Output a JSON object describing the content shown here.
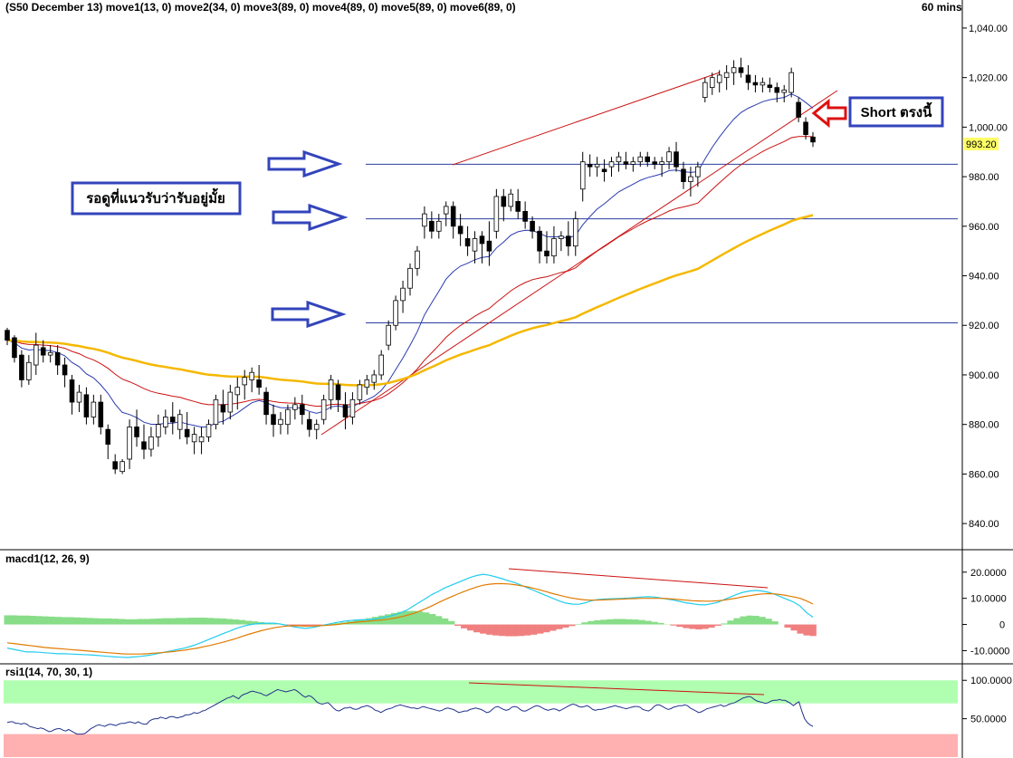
{
  "header": {
    "title": "(S50 December 13) move1(13, 0) move2(34, 0) move3(89, 0) move4(89, 0) move5(89, 0) move6(89, 0)",
    "interval": "60 mins"
  },
  "annotations": {
    "support_note": "รอดูที่แนวรับว่ารับอยู่มั้ย",
    "short_note": "Short ตรงนี้"
  },
  "colors": {
    "candle_body_up": "#ffffff",
    "candle_body_down": "#000000",
    "ma_fast": "#2a3bb0",
    "ma_mid": "#cc1111",
    "ma_slow": "#f5b800",
    "support_line": "#2b3fa0",
    "trendline": "#cc1111",
    "arrow_blue": "#3344bb",
    "arrow_red": "#dd1111",
    "macd_line": "#22ccee",
    "signal_line": "#e07b00",
    "hist_pos": "#88dd88",
    "hist_neg": "#f08080",
    "rsi_line": "#22338a",
    "rsi_overbought_zone": "#b0ffb0",
    "rsi_oversold_zone": "#ffb0b0"
  },
  "chart_data": [
    {
      "type": "candlestick",
      "panel": "price",
      "interval": "60 mins",
      "y_ticks": [
        "1,040.00",
        "1,020.00",
        "1,000.00",
        "980.00",
        "960.00",
        "940.00",
        "920.00",
        "900.00",
        "880.00",
        "860.00",
        "840.00"
      ],
      "ylim": [
        832,
        1044
      ],
      "last_price": "993.20",
      "support_levels": [
        985,
        963,
        921
      ],
      "ma_periods": [
        13,
        34,
        89
      ],
      "ohlc": [
        [
          918,
          919,
          912,
          914
        ],
        [
          915,
          916,
          905,
          907
        ],
        [
          908,
          910,
          895,
          898
        ],
        [
          898,
          908,
          896,
          905
        ],
        [
          904,
          917,
          900,
          912
        ],
        [
          911,
          914,
          905,
          908
        ],
        [
          908,
          912,
          905,
          909
        ],
        [
          909,
          912,
          900,
          904
        ],
        [
          904,
          907,
          895,
          900
        ],
        [
          898,
          900,
          884,
          889
        ],
        [
          889,
          896,
          885,
          893
        ],
        [
          892,
          895,
          880,
          883
        ],
        [
          883,
          892,
          880,
          889
        ],
        [
          889,
          892,
          876,
          879
        ],
        [
          878,
          880,
          866,
          872
        ],
        [
          865,
          868,
          860,
          862
        ],
        [
          861,
          866,
          860,
          865
        ],
        [
          866,
          882,
          862,
          879
        ],
        [
          879,
          886,
          871,
          875
        ],
        [
          873,
          880,
          866,
          870
        ],
        [
          870,
          879,
          867,
          875
        ],
        [
          875,
          884,
          871,
          880
        ],
        [
          879,
          886,
          876,
          883
        ],
        [
          883,
          889,
          876,
          881
        ],
        [
          878,
          886,
          874,
          884
        ],
        [
          878,
          885,
          872,
          875
        ],
        [
          873,
          879,
          868,
          876
        ],
        [
          873,
          879,
          868,
          875
        ],
        [
          875,
          882,
          873,
          880
        ],
        [
          880,
          892,
          878,
          890
        ],
        [
          888,
          894,
          880,
          885
        ],
        [
          885,
          896,
          882,
          893
        ],
        [
          892,
          899,
          886,
          895
        ],
        [
          896,
          902,
          890,
          899
        ],
        [
          898,
          903,
          893,
          901
        ],
        [
          898,
          904,
          892,
          895
        ],
        [
          893,
          895,
          880,
          884
        ],
        [
          884,
          888,
          875,
          880
        ],
        [
          880,
          885,
          876,
          882
        ],
        [
          880,
          888,
          876,
          886
        ],
        [
          886,
          891,
          882,
          888
        ],
        [
          888,
          892,
          880,
          884
        ],
        [
          882,
          885,
          875,
          878
        ],
        [
          878,
          882,
          874,
          880
        ],
        [
          882,
          892,
          880,
          890
        ],
        [
          890,
          900,
          886,
          898
        ],
        [
          896,
          898,
          885,
          890
        ],
        [
          888,
          893,
          878,
          883
        ],
        [
          883,
          893,
          880,
          890
        ],
        [
          890,
          898,
          888,
          896
        ],
        [
          895,
          900,
          892,
          898
        ],
        [
          897,
          902,
          894,
          900
        ],
        [
          900,
          910,
          898,
          908
        ],
        [
          912,
          922,
          910,
          920
        ],
        [
          920,
          932,
          918,
          930
        ],
        [
          930,
          938,
          925,
          935
        ],
        [
          935,
          945,
          932,
          943
        ],
        [
          943,
          952,
          940,
          950
        ],
        [
          960,
          968,
          955,
          965
        ],
        [
          962,
          966,
          955,
          958
        ],
        [
          958,
          965,
          955,
          962
        ],
        [
          965,
          970,
          960,
          968
        ],
        [
          968,
          970,
          955,
          960
        ],
        [
          960,
          965,
          952,
          957
        ],
        [
          955,
          960,
          948,
          952
        ],
        [
          950,
          958,
          945,
          955
        ],
        [
          956,
          958,
          945,
          953
        ],
        [
          954,
          962,
          944,
          950
        ],
        [
          958,
          975,
          955,
          972
        ],
        [
          972,
          975,
          962,
          968
        ],
        [
          968,
          975,
          966,
          973
        ],
        [
          970,
          975,
          963,
          966
        ],
        [
          966,
          970,
          959,
          962
        ],
        [
          962,
          964,
          955,
          958
        ],
        [
          958,
          960,
          945,
          950
        ],
        [
          950,
          958,
          945,
          948
        ],
        [
          948,
          960,
          945,
          955
        ],
        [
          955,
          958,
          950,
          956
        ],
        [
          956,
          962,
          948,
          952
        ],
        [
          952,
          966,
          948,
          963
        ],
        [
          975,
          990,
          970,
          986
        ],
        [
          985,
          989,
          980,
          984
        ],
        [
          984,
          988,
          980,
          985
        ],
        [
          983,
          987,
          978,
          982
        ],
        [
          984,
          988,
          980,
          986
        ],
        [
          986,
          990,
          982,
          988
        ],
        [
          986,
          990,
          983,
          985
        ],
        [
          985,
          988,
          982,
          986
        ],
        [
          986,
          990,
          984,
          988
        ],
        [
          988,
          990,
          984,
          986
        ],
        [
          986,
          988,
          983,
          985
        ],
        [
          985,
          988,
          980,
          986
        ],
        [
          986,
          992,
          983,
          990
        ],
        [
          990,
          994,
          982,
          984
        ],
        [
          983,
          986,
          975,
          978
        ],
        [
          978,
          984,
          972,
          980
        ],
        [
          980,
          986,
          976,
          984
        ],
        [
          1012,
          1020,
          1010,
          1018
        ],
        [
          1016,
          1022,
          1013,
          1020
        ],
        [
          1018,
          1023,
          1014,
          1021
        ],
        [
          1020,
          1025,
          1015,
          1022
        ],
        [
          1022,
          1027,
          1017,
          1024
        ],
        [
          1024,
          1028,
          1020,
          1022
        ],
        [
          1021,
          1025,
          1015,
          1018
        ],
        [
          1018,
          1021,
          1014,
          1017
        ],
        [
          1017,
          1020,
          1014,
          1018
        ],
        [
          1017,
          1020,
          1014,
          1016
        ],
        [
          1016,
          1018,
          1010,
          1014
        ],
        [
          1014,
          1017,
          1010,
          1015
        ],
        [
          1014,
          1024,
          1012,
          1022
        ],
        [
          1010,
          1012,
          1002,
          1004
        ],
        [
          1002,
          1004,
          995,
          997
        ],
        [
          996,
          998,
          992,
          994
        ]
      ]
    },
    {
      "type": "line",
      "panel": "macd",
      "title": "macd1(12, 26, 9)",
      "y_ticks": [
        "20.0000",
        "10.0000",
        "0",
        "-10.0000"
      ],
      "ylim": [
        -14,
        22
      ],
      "macd": [
        -9,
        -9.5,
        -10,
        -10.5,
        -10.5,
        -10.6,
        -10.8,
        -11,
        -11.2,
        -11.2,
        -11.3,
        -11.4,
        -11.5,
        -11.6,
        -11.8,
        -12,
        -12.2,
        -12.4,
        -12.5,
        -12.6,
        -12.4,
        -12.2,
        -11.9,
        -11.5,
        -11,
        -10.5,
        -10,
        -9.5,
        -9,
        -8.3,
        -7.5,
        -6.5,
        -5.5,
        -4.5,
        -3.5,
        -2.6,
        -1.6,
        -0.8,
        -0.2,
        0.2,
        0.4,
        0.5,
        0.5,
        0.2,
        -0.3,
        -0.8,
        -1.2,
        -1.5,
        -1.2,
        -0.7,
        -0.2,
        0.3,
        0.8,
        1.2,
        1.5,
        1.7,
        1.8,
        1.9,
        2.1,
        2.5,
        3,
        3.7,
        4.5,
        5.5,
        7,
        8.5,
        10,
        11.5,
        12.7,
        14,
        15,
        16,
        17,
        18,
        18.7,
        19.2,
        18.8,
        18.2,
        17.5,
        16.7,
        16,
        15,
        14,
        13,
        12,
        11,
        10,
        9,
        8.2,
        7.8,
        7.7,
        8.2,
        9,
        9.5,
        9.7,
        9.8,
        9.9,
        10,
        10.1,
        10.3,
        10.5,
        10.6,
        10.5,
        10.1,
        9.7,
        9.3,
        8.8,
        8.3,
        7.9,
        7.6,
        7.5,
        7.9,
        8.5,
        9.5,
        10.5,
        11.5,
        12.3,
        12.8,
        13,
        12.8,
        12.3,
        11.5,
        10.5,
        9.5,
        8.5,
        7,
        4.5,
        2.8
      ],
      "signal": [
        -7,
        -7.3,
        -7.6,
        -7.9,
        -8.2,
        -8.5,
        -8.8,
        -9,
        -9.2,
        -9.4,
        -9.6,
        -9.8,
        -10,
        -10.2,
        -10.4,
        -10.6,
        -10.8,
        -11,
        -11.2,
        -11.3,
        -11.3,
        -11.3,
        -11.2,
        -11,
        -10.8,
        -10.6,
        -10.4,
        -10.1,
        -9.8,
        -9.4,
        -9,
        -8.5,
        -8,
        -7.4,
        -6.8,
        -6.1,
        -5.4,
        -4.6,
        -3.8,
        -3.1,
        -2.4,
        -1.8,
        -1.3,
        -0.9,
        -0.6,
        -0.5,
        -0.5,
        -0.6,
        -0.6,
        -0.5,
        -0.4,
        -0.2,
        0,
        0.3,
        0.6,
        0.9,
        1.1,
        1.3,
        1.5,
        1.7,
        2,
        2.4,
        2.9,
        3.5,
        4.2,
        5.1,
        6.1,
        7.2,
        8.4,
        9.5,
        10.6,
        11.6,
        12.6,
        13.5,
        14.3,
        15,
        15.4,
        15.6,
        15.6,
        15.5,
        15.2,
        14.8,
        14.4,
        13.8,
        13.2,
        12.5,
        11.8,
        11.2,
        10.6,
        10.1,
        9.7,
        9.4,
        9.3,
        9.3,
        9.4,
        9.5,
        9.6,
        9.7,
        9.8,
        9.9,
        10,
        10,
        10,
        10,
        9.9,
        9.7,
        9.5,
        9.3,
        9.1,
        9,
        8.9,
        8.9,
        9.1,
        9.3,
        9.7,
        10.1,
        10.6,
        11,
        11.4,
        11.7,
        11.8,
        11.7,
        11.4,
        11,
        10.5,
        10,
        9,
        7.8
      ],
      "histogram": [
        3.5,
        3.5,
        3.4,
        3.4,
        3.3,
        3.2,
        3.1,
        3,
        2.9,
        2.8,
        2.8,
        2.7,
        2.6,
        2.5,
        2.4,
        2.3,
        2.3,
        2.2,
        2.1,
        2,
        2,
        2.1,
        2.1,
        2.2,
        2.3,
        2.4,
        2.4,
        2.5,
        2.5,
        2.6,
        2.6,
        2.6,
        2.5,
        2.4,
        2.3,
        2.1,
        1.9,
        1.7,
        1.4,
        1.2,
        0.9,
        0.6,
        0.3,
        0,
        -0.2,
        -0.4,
        -0.6,
        -0.8,
        -0.6,
        -0.3,
        -0.1,
        0.2,
        0.5,
        0.8,
        1.2,
        1.6,
        2,
        2.4,
        2.9,
        3.4,
        3.9,
        4.4,
        4.8,
        5.1,
        5.2,
        5,
        4.6,
        4,
        3.2,
        2.3,
        1.3,
        -0.5,
        -1.5,
        -2.3,
        -3,
        -3.5,
        -3.9,
        -4.2,
        -4.4,
        -4.5,
        -4.5,
        -4.4,
        -4.2,
        -3.9,
        -3.5,
        -3,
        -2.4,
        -1.8,
        -1.2,
        -0.6,
        0.2,
        0.8,
        1.3,
        1.6,
        1.8,
        2,
        2.1,
        2.1,
        2,
        1.9,
        1.7,
        1.4,
        1,
        0.6,
        0.1,
        -0.4,
        -0.9,
        -1.4,
        -1.7,
        -1.9,
        -1.7,
        -1.2,
        -0.5,
        0.4,
        1.5,
        2.4,
        3.1,
        3.4,
        3.3,
        2.9,
        2.2,
        1.2,
        0,
        -1.2,
        -2.3,
        -3.5,
        -4.2,
        -4.4
      ]
    },
    {
      "type": "line",
      "panel": "rsi",
      "title": "rsi1(14, 70, 30, 1)",
      "y_ticks": [
        "100.0000",
        "50.0000"
      ],
      "ylim": [
        0,
        105
      ],
      "overbought_zone": [
        70,
        100
      ],
      "oversold_zone": [
        0,
        30
      ],
      "values": [
        45,
        46,
        46,
        44,
        44,
        43,
        44,
        43,
        40,
        39,
        38,
        37,
        38,
        37,
        35,
        33,
        34,
        36,
        37,
        37,
        35,
        34,
        36,
        34,
        32,
        30,
        30,
        30,
        31,
        34,
        37,
        39,
        41,
        42,
        41,
        40,
        42,
        43,
        42,
        41,
        43,
        44,
        44,
        45,
        46,
        45,
        44,
        46,
        44,
        43,
        43,
        47,
        49,
        50,
        50,
        52,
        51,
        50,
        52,
        53,
        52,
        51,
        52,
        53,
        55,
        55,
        56,
        58,
        57,
        58,
        60,
        61,
        63,
        65,
        67,
        69,
        71,
        73,
        75,
        77,
        78,
        80,
        78,
        76,
        80,
        82,
        83,
        85,
        86,
        85,
        84,
        83,
        81,
        80,
        82,
        84,
        86,
        88,
        87,
        86,
        85,
        86,
        87,
        88,
        86,
        83,
        80,
        78,
        80,
        79,
        76,
        72,
        70,
        69,
        70,
        71,
        68,
        64,
        61,
        60,
        62,
        64,
        64,
        65,
        63,
        62,
        63,
        65,
        66,
        67,
        66,
        64,
        61,
        60,
        58,
        60,
        62,
        63,
        64,
        66,
        67,
        68,
        67,
        66,
        65,
        64,
        64,
        63,
        64,
        66,
        65,
        64,
        63,
        62,
        61,
        60,
        61,
        63,
        64,
        63,
        62,
        60,
        58,
        59,
        60,
        60,
        62,
        63,
        64,
        63,
        62,
        60,
        58,
        59,
        62,
        65,
        66,
        64,
        62,
        61,
        62,
        65,
        66,
        65,
        62,
        60,
        60,
        62,
        64,
        66,
        67,
        66,
        64,
        62,
        61,
        62,
        63,
        62,
        60,
        62,
        64,
        66,
        68,
        69,
        68,
        66,
        65,
        66,
        67,
        65,
        62,
        61,
        62,
        62,
        63,
        64,
        65,
        66,
        67,
        66,
        65,
        64,
        63,
        64,
        65,
        66,
        66,
        65,
        62,
        61,
        60,
        62,
        66,
        68,
        68,
        66,
        64,
        62,
        63,
        65,
        66,
        67,
        67,
        68,
        67,
        64,
        62,
        60,
        58,
        59,
        61,
        63,
        64,
        65,
        66,
        67,
        68,
        66,
        67,
        69,
        70,
        71,
        73,
        75,
        77,
        78,
        79,
        78,
        75,
        73,
        72,
        71,
        70,
        71,
        73,
        74,
        74,
        75,
        74,
        74,
        72,
        70,
        67,
        70,
        72,
        60,
        50,
        45,
        42,
        40
      ]
    }
  ]
}
